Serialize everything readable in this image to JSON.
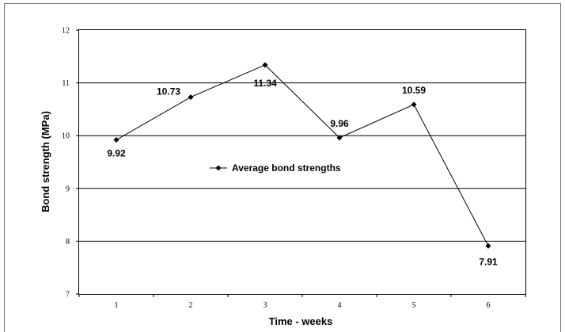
{
  "chart_data": {
    "type": "line",
    "title": "",
    "xlabel": "Time - weeks",
    "ylabel": "Bond strength (MPa)",
    "categories": [
      "1",
      "2",
      "3",
      "4",
      "5",
      "6"
    ],
    "yticks": [
      "7",
      "8",
      "9",
      "10",
      "11",
      "12"
    ],
    "ylim": [
      7,
      12
    ],
    "grid": "horizontal",
    "legend_position": "center",
    "series": [
      {
        "name": "Average bond strengths",
        "values": [
          9.92,
          10.73,
          11.34,
          9.96,
          10.59,
          7.91
        ],
        "labels": [
          "9.92",
          "10.73",
          "11.34",
          "9.96",
          "10.59",
          "7.91"
        ],
        "color": "#000000"
      }
    ]
  }
}
